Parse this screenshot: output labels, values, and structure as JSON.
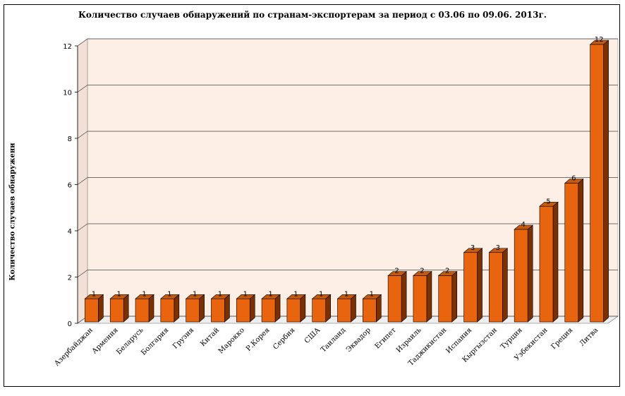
{
  "chart_data": {
    "type": "bar",
    "title": "Количество случаев обнаружений по странам-экспортерам за период с 03.06 по 09.06. 2013г.",
    "xlabel": "",
    "ylabel": "Количество случаев обнаружени",
    "ylim": [
      0,
      12
    ],
    "yticks": [
      0,
      2,
      4,
      6,
      8,
      10,
      12
    ],
    "grid": true,
    "categories": [
      "Азербайджан",
      "Армения",
      "Беларусь",
      "Болгария",
      "Грузия",
      "Китай",
      "Марокко",
      "Р.Корея",
      "Сербия",
      "США",
      "Таиланд",
      "Эквадор",
      "Египет",
      "Израиль",
      "Таджикистан",
      "Испания",
      "Кыргызстан",
      "Турция",
      "Узбекистан",
      "Греция",
      "Литва"
    ],
    "values": [
      1,
      1,
      1,
      1,
      1,
      1,
      1,
      1,
      1,
      1,
      1,
      1,
      2,
      2,
      2,
      3,
      3,
      4,
      5,
      6,
      12
    ],
    "colors": {
      "bar_front": "#e8640e",
      "bar_side": "#7a3000",
      "bar_top": "#c25a10",
      "wall": "#fdeee6",
      "grid": "#444444"
    }
  }
}
